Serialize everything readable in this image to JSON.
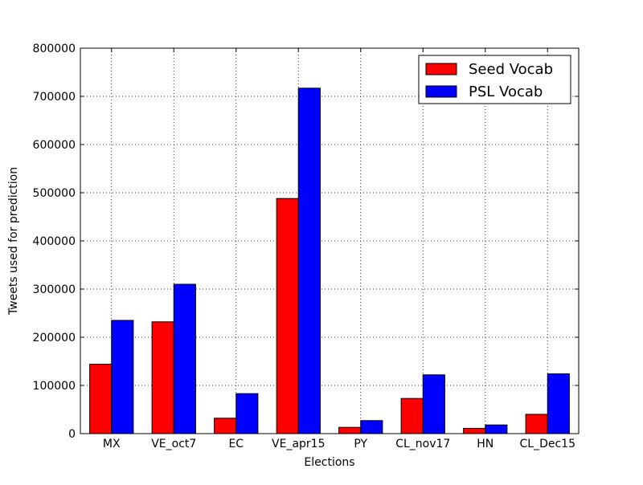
{
  "chart_data": {
    "type": "bar",
    "title": "",
    "xlabel": "Elections",
    "ylabel": "Tweets used for prediction",
    "categories": [
      "MX",
      "VE_oct7",
      "EC",
      "VE_apr15",
      "PY",
      "CL_nov17",
      "HN",
      "CL_Dec15"
    ],
    "series": [
      {
        "name": "Seed Vocab",
        "color": "#ff0000",
        "values": [
          144000,
          232000,
          32000,
          488000,
          13000,
          73000,
          11000,
          40000
        ]
      },
      {
        "name": "PSL Vocab",
        "color": "#0000ff",
        "values": [
          235000,
          310000,
          83000,
          717000,
          27000,
          122000,
          18000,
          124000
        ]
      }
    ],
    "ylim": [
      0,
      800000
    ],
    "yticks": [
      0,
      100000,
      200000,
      300000,
      400000,
      500000,
      600000,
      700000,
      800000
    ],
    "grid": true,
    "legend_position": "top-right"
  }
}
